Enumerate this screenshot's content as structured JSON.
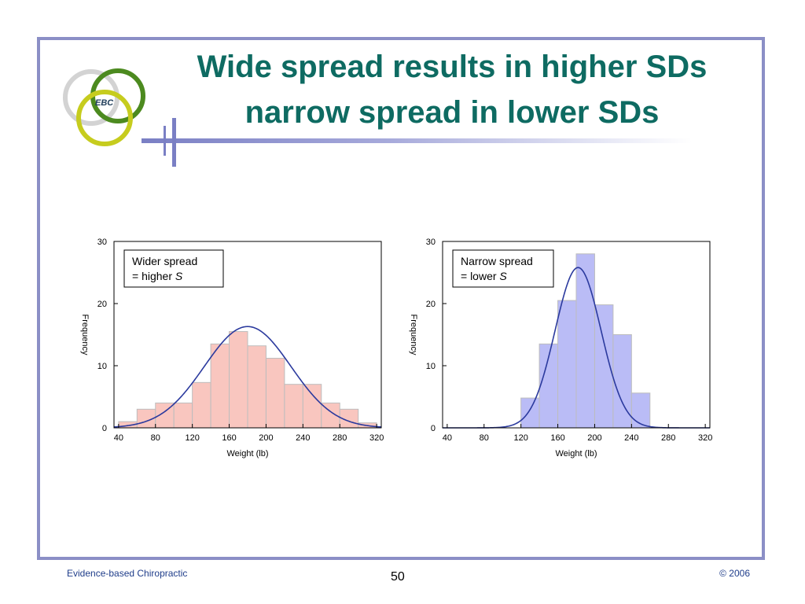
{
  "slide": {
    "title_line1": "Wide spread results in higher SDs",
    "title_line2": "narrow spread in lower SDs",
    "logo_text": "EBC",
    "footer_left": "Evidence-based Chiropractic",
    "page_number": "50",
    "footer_right": "© 2006"
  },
  "colors": {
    "title": "#0e6b62",
    "frame": "#8b8fc6",
    "curve": "#2b3a9e",
    "left_bars": "#f9c6bf",
    "left_bar_stroke": "#bdbdbd",
    "right_bars": "#babcf6",
    "right_bar_stroke": "#bdbdbd"
  },
  "chart_data": [
    {
      "type": "bar",
      "x_bin_starts": [
        40,
        60,
        80,
        100,
        120,
        140,
        160,
        180,
        200,
        220,
        240,
        260,
        280,
        300
      ],
      "bin_width": 20,
      "values": [
        1,
        3,
        4,
        4,
        7.3,
        13.5,
        15.5,
        13.2,
        11.2,
        7,
        7,
        4,
        3,
        0.8
      ],
      "curve": {
        "type": "normal",
        "mean": 180,
        "sd": 47,
        "peak": 16.3
      },
      "xlim": [
        35,
        325
      ],
      "ylim": [
        0,
        30
      ],
      "xticks": [
        40,
        80,
        120,
        160,
        200,
        240,
        280,
        320
      ],
      "yticks": [
        0,
        10,
        20,
        30
      ],
      "xlabel": "Weight (lb)",
      "ylabel": "Frequency",
      "annotation_line1": "Wider spread",
      "annotation_line2_prefix": "= higher ",
      "annotation_line2_symbol": "S",
      "annotation_placement": "top-left",
      "grid": false
    },
    {
      "type": "bar",
      "x_bin_starts": [
        120,
        140,
        160,
        180,
        200,
        220,
        240
      ],
      "bin_width": 20,
      "values": [
        4.8,
        13.5,
        20.5,
        28,
        19.8,
        15,
        5.6
      ],
      "curve": {
        "type": "normal",
        "mean": 182,
        "sd": 25,
        "peak": 25.8
      },
      "xlim": [
        35,
        325
      ],
      "ylim": [
        0,
        30
      ],
      "xticks": [
        40,
        80,
        120,
        160,
        200,
        240,
        280,
        320
      ],
      "yticks": [
        0,
        10,
        20,
        30
      ],
      "xlabel": "Weight (lb)",
      "ylabel": "Frequency",
      "annotation_line1": "Narrow spread",
      "annotation_line2_prefix": "= lower ",
      "annotation_line2_symbol": "S",
      "annotation_placement": "top-left",
      "grid": false
    }
  ]
}
